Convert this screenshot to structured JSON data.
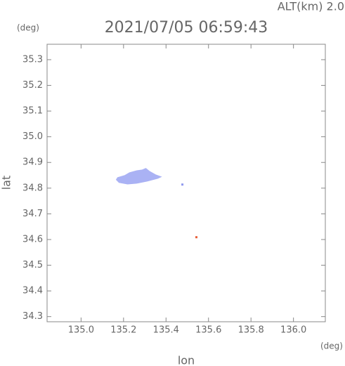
{
  "chart_data": {
    "type": "scatter",
    "title": "2021/07/05 06:59:43",
    "annotation": "ALT(km) 2.0",
    "y_unit": "(deg)",
    "x_unit": "(deg)",
    "xlabel": "lon",
    "ylabel": "lat",
    "xlim": [
      134.84,
      136.15
    ],
    "ylim": [
      34.28,
      35.36
    ],
    "xticks": [
      {
        "value": 135.0,
        "label": "135.0"
      },
      135.2,
      135.4,
      135.6,
      135.8,
      {
        "value": 136.0,
        "label": "136.0"
      }
    ],
    "yticks": [
      34.3,
      34.4,
      34.5,
      34.6,
      34.7,
      34.8,
      34.9,
      {
        "value": 35.0,
        "label": "35.0"
      },
      35.1,
      35.2,
      35.3
    ],
    "series": [
      {
        "color": "#aab2f4",
        "fill": true,
        "x": [
          135.166,
          135.172,
          135.205,
          135.228,
          135.262,
          135.288,
          135.305,
          135.321,
          135.351,
          135.377,
          135.361,
          135.311,
          135.262,
          135.219,
          135.179
        ],
        "y": [
          34.833,
          34.841,
          34.849,
          34.86,
          34.868,
          34.871,
          34.877,
          34.866,
          34.852,
          34.844,
          34.838,
          34.827,
          34.819,
          34.816,
          34.822
        ]
      },
      {
        "color": "#8f98ee",
        "fill": false,
        "x": [
          135.477
        ],
        "y": [
          34.814
        ]
      },
      {
        "color": "#e8603a",
        "fill": false,
        "x": [
          135.543
        ],
        "y": [
          34.609
        ]
      }
    ]
  }
}
